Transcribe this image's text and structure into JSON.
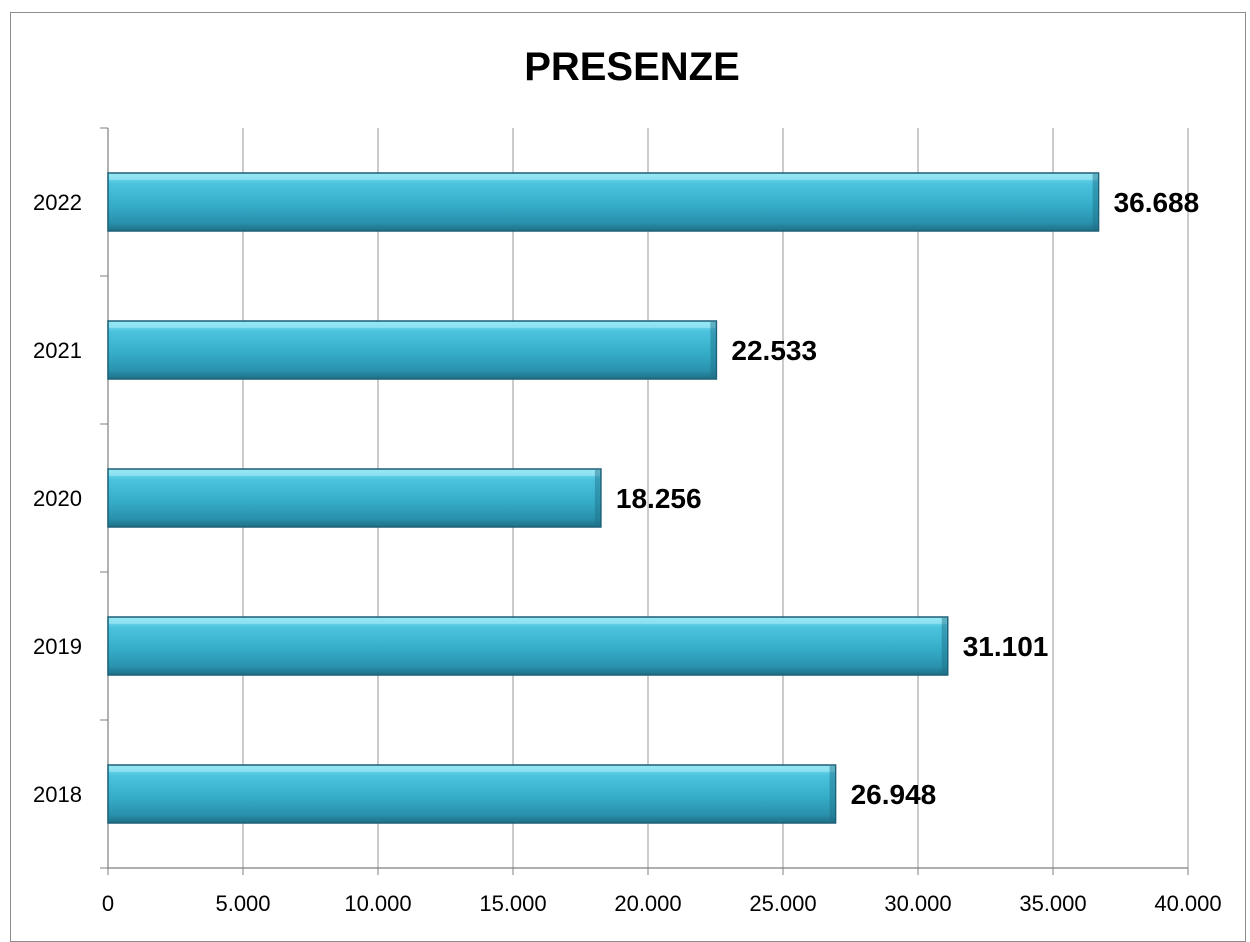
{
  "chart_data": {
    "type": "bar",
    "orientation": "horizontal",
    "title": "PRESENZE",
    "categories": [
      "2018",
      "2019",
      "2020",
      "2021",
      "2022"
    ],
    "values": [
      26948,
      31101,
      18256,
      22533,
      36688
    ],
    "value_labels": [
      "26.948",
      "31.101",
      "18.256",
      "22.533",
      "36.688"
    ],
    "xlim": [
      0,
      40000
    ],
    "x_ticks": [
      0,
      5000,
      10000,
      15000,
      20000,
      25000,
      30000,
      35000,
      40000
    ],
    "x_tick_labels": [
      "0",
      "5.000",
      "10.000",
      "15.000",
      "20.000",
      "25.000",
      "30.000",
      "35.000",
      "40.000"
    ],
    "grid": "vertical",
    "legend": "none",
    "bar_color": "#3bb3d0"
  }
}
